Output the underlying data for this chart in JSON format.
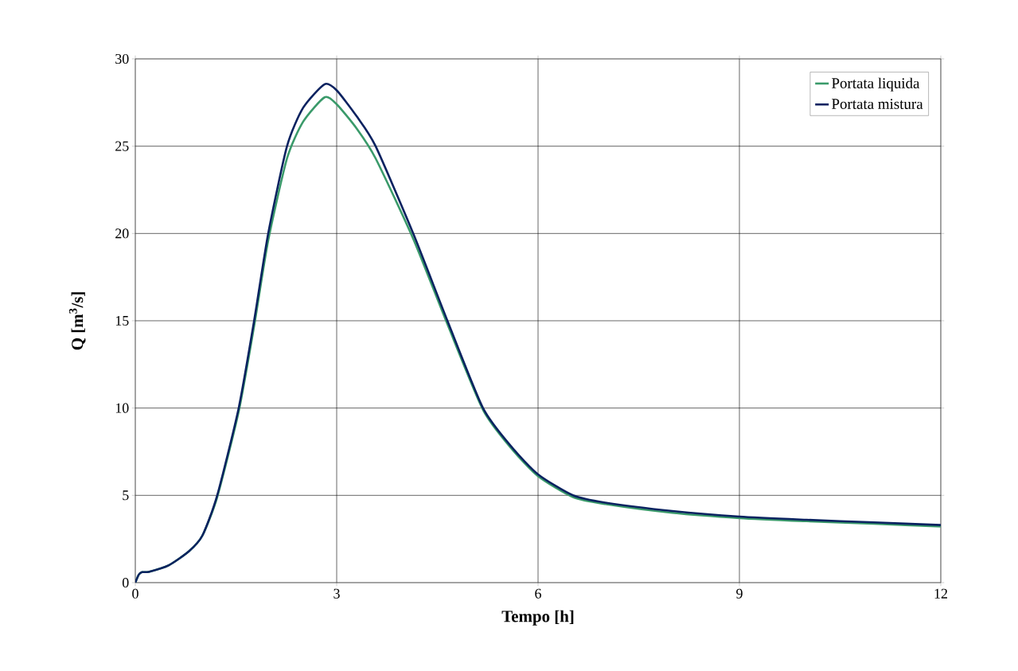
{
  "chart_data": {
    "type": "line",
    "xlabel": "Tempo [h]",
    "ylabel": "Q [m$^{3}$/s]",
    "xlim": [
      0,
      12
    ],
    "ylim": [
      0,
      30
    ],
    "xticks": [
      0,
      3,
      6,
      9,
      12
    ],
    "yticks": [
      0,
      5,
      10,
      15,
      20,
      25,
      30
    ],
    "grid": true,
    "legend": "top right",
    "marker": "none",
    "line_style": "solid",
    "series": [
      {
        "name": "Portata liquida",
        "color": "#3a9a6a",
        "x": [
          0,
          0.05,
          0.1,
          0.2,
          0.5,
          0.8,
          1.0,
          1.22,
          1.54,
          1.77,
          1.98,
          2.26,
          2.5,
          2.82,
          3.0,
          3.3,
          3.58,
          4.14,
          4.65,
          5.18,
          5.6,
          6.0,
          6.52,
          7,
          8,
          9,
          10,
          11,
          12
        ],
        "values": [
          0,
          0.45,
          0.6,
          0.62,
          1.0,
          1.8,
          2.7,
          4.9,
          9.8,
          14.7,
          19.6,
          24.3,
          26.4,
          27.8,
          27.4,
          26.0,
          24.3,
          19.7,
          14.8,
          9.9,
          7.7,
          6.1,
          4.9,
          4.5,
          4.0,
          3.7,
          3.52,
          3.37,
          3.22
        ]
      },
      {
        "name": "Portata mistura",
        "color": "#0a2260",
        "x": [
          0,
          0.05,
          0.1,
          0.2,
          0.5,
          0.8,
          1.0,
          1.22,
          1.54,
          1.77,
          1.98,
          2.26,
          2.5,
          2.82,
          3.0,
          3.3,
          3.58,
          4.14,
          4.65,
          5.18,
          5.6,
          6.0,
          6.52,
          7,
          8,
          9,
          10,
          11,
          12
        ],
        "values": [
          0,
          0.45,
          0.6,
          0.62,
          1.0,
          1.8,
          2.7,
          5,
          10,
          15,
          20,
          25,
          27.2,
          28.55,
          28.2,
          26.7,
          25,
          20,
          15,
          10,
          7.8,
          6.2,
          5,
          4.58,
          4.1,
          3.78,
          3.6,
          3.45,
          3.3
        ]
      }
    ]
  }
}
